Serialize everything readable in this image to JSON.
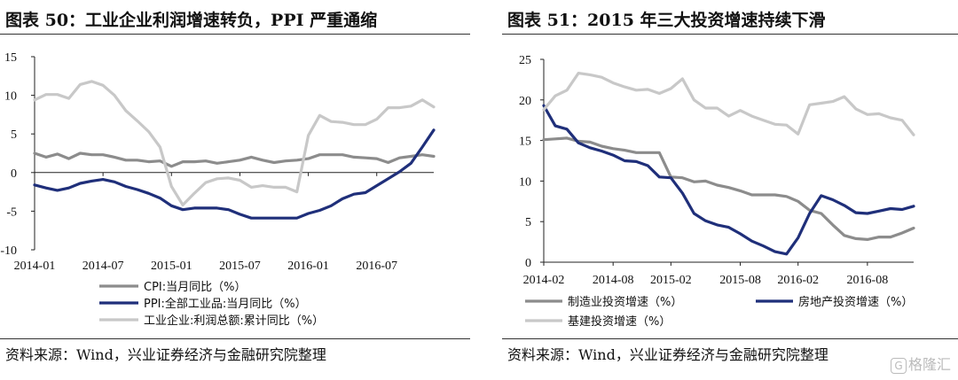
{
  "left": {
    "title": "图表 50：工业企业利润增速转负，PPI 严重通缩",
    "source": "资料来源：Wind，兴业证券经济与金融研究院整理"
  },
  "right": {
    "title": "图表 51：2015 年三大投资增速持续下滑",
    "source": "资料来源：Wind，兴业证券经济与金融研究院整理"
  },
  "watermark": {
    "badge": "G",
    "text": "格隆汇"
  },
  "chart_data": [
    {
      "type": "line",
      "title": "",
      "xlabel": "",
      "ylabel": "",
      "ylim": [
        -10,
        15
      ],
      "yticks": [
        "15",
        "10",
        "5",
        "0",
        "-5",
        "-10"
      ],
      "x_tick_labels": [
        "2014-01",
        "2014-07",
        "2015-01",
        "2015-07",
        "2016-01",
        "2016-07"
      ],
      "x": [
        "2014-01",
        "2014-02",
        "2014-03",
        "2014-04",
        "2014-05",
        "2014-06",
        "2014-07",
        "2014-08",
        "2014-09",
        "2014-10",
        "2014-11",
        "2014-12",
        "2015-01",
        "2015-02",
        "2015-03",
        "2015-04",
        "2015-05",
        "2015-06",
        "2015-07",
        "2015-08",
        "2015-09",
        "2015-10",
        "2015-11",
        "2015-12",
        "2016-01",
        "2016-02",
        "2016-03",
        "2016-04",
        "2016-05",
        "2016-06",
        "2016-07",
        "2016-08",
        "2016-09",
        "2016-10",
        "2016-11",
        "2016-12"
      ],
      "grid": false,
      "legend_position": "bottom",
      "series": [
        {
          "name": "CPI:当月同比（%）",
          "color": "#8c8c8c",
          "values": [
            2.5,
            2.0,
            2.4,
            1.8,
            2.5,
            2.3,
            2.3,
            2.0,
            1.6,
            1.6,
            1.4,
            1.5,
            0.8,
            1.4,
            1.4,
            1.5,
            1.2,
            1.4,
            1.6,
            2.0,
            1.6,
            1.3,
            1.5,
            1.6,
            1.8,
            2.3,
            2.3,
            2.3,
            2.0,
            1.9,
            1.8,
            1.3,
            1.9,
            2.1,
            2.3,
            2.1
          ]
        },
        {
          "name": "PPI:全部工业品:当月同比（%）",
          "color": "#1f2f7a",
          "values": [
            -1.6,
            -2.0,
            -2.3,
            -2.0,
            -1.4,
            -1.1,
            -0.9,
            -1.2,
            -1.8,
            -2.2,
            -2.7,
            -3.3,
            -4.3,
            -4.8,
            -4.6,
            -4.6,
            -4.6,
            -4.8,
            -5.4,
            -5.9,
            -5.9,
            -5.9,
            -5.9,
            -5.9,
            -5.3,
            -4.9,
            -4.3,
            -3.4,
            -2.8,
            -2.6,
            -1.7,
            -0.8,
            0.1,
            1.2,
            3.3,
            5.5
          ]
        },
        {
          "name": "工业企业:利润总额:累计同比（%）",
          "color": "#c8c8c8",
          "values": [
            9.4,
            10.1,
            10.1,
            9.6,
            11.4,
            11.8,
            11.3,
            10.0,
            8.0,
            6.7,
            5.3,
            3.3,
            -1.8,
            -4.2,
            -2.7,
            -1.3,
            -0.8,
            -0.7,
            -1.0,
            -1.9,
            -1.7,
            -1.9,
            -1.9,
            -2.5,
            4.8,
            7.4,
            6.6,
            6.5,
            6.2,
            6.2,
            6.9,
            8.4,
            8.4,
            8.6,
            9.4,
            8.5
          ]
        }
      ]
    },
    {
      "type": "line",
      "title": "",
      "xlabel": "",
      "ylabel": "",
      "ylim": [
        0,
        25
      ],
      "yticks": [
        "25",
        "20",
        "15",
        "10",
        "5",
        "0"
      ],
      "x_tick_labels": [
        "2014-02",
        "2014-08",
        "2015-02",
        "2015-08",
        "2016-02",
        "2016-08"
      ],
      "x": [
        "2014-02",
        "2014-03",
        "2014-04",
        "2014-05",
        "2014-06",
        "2014-07",
        "2014-08",
        "2014-09",
        "2014-10",
        "2014-11",
        "2014-12",
        "2015-02",
        "2015-03",
        "2015-04",
        "2015-05",
        "2015-06",
        "2015-07",
        "2015-08",
        "2015-09",
        "2015-10",
        "2015-11",
        "2015-12",
        "2016-02",
        "2016-03",
        "2016-04",
        "2016-05",
        "2016-06",
        "2016-07",
        "2016-08",
        "2016-09",
        "2016-10",
        "2016-11",
        "2016-12"
      ],
      "grid": false,
      "legend_position": "bottom",
      "series": [
        {
          "name": "制造业投资增速（%）",
          "color": "#8c8c8c",
          "values": [
            15.1,
            15.2,
            15.3,
            14.9,
            14.8,
            14.3,
            14.0,
            13.8,
            13.5,
            13.5,
            13.5,
            10.5,
            10.4,
            9.9,
            10.0,
            9.5,
            9.2,
            8.8,
            8.3,
            8.3,
            8.3,
            8.1,
            7.5,
            6.4,
            6.0,
            4.6,
            3.3,
            2.9,
            2.8,
            3.1,
            3.1,
            3.6,
            4.2
          ]
        },
        {
          "name": "房地产投资增速（%）",
          "color": "#1f2f7a",
          "values": [
            19.3,
            16.8,
            16.4,
            14.7,
            14.1,
            13.7,
            13.2,
            12.5,
            12.4,
            11.9,
            10.5,
            10.4,
            8.5,
            6.0,
            5.1,
            4.6,
            4.3,
            3.5,
            2.6,
            2.0,
            1.3,
            1.0,
            3.0,
            6.0,
            8.2,
            7.7,
            7.0,
            6.1,
            6.0,
            6.3,
            6.6,
            6.5,
            6.9
          ]
        },
        {
          "name": "基建投资增速（%）",
          "color": "#c8c8c8",
          "values": [
            18.8,
            20.5,
            21.2,
            23.3,
            23.1,
            22.8,
            22.1,
            21.6,
            21.2,
            21.3,
            20.8,
            21.4,
            22.6,
            20.0,
            19.0,
            19.0,
            18.0,
            18.7,
            18.0,
            17.5,
            17.0,
            16.9,
            15.8,
            19.4,
            19.6,
            19.8,
            20.4,
            18.9,
            18.2,
            18.3,
            17.8,
            17.5,
            15.7
          ]
        }
      ]
    }
  ]
}
